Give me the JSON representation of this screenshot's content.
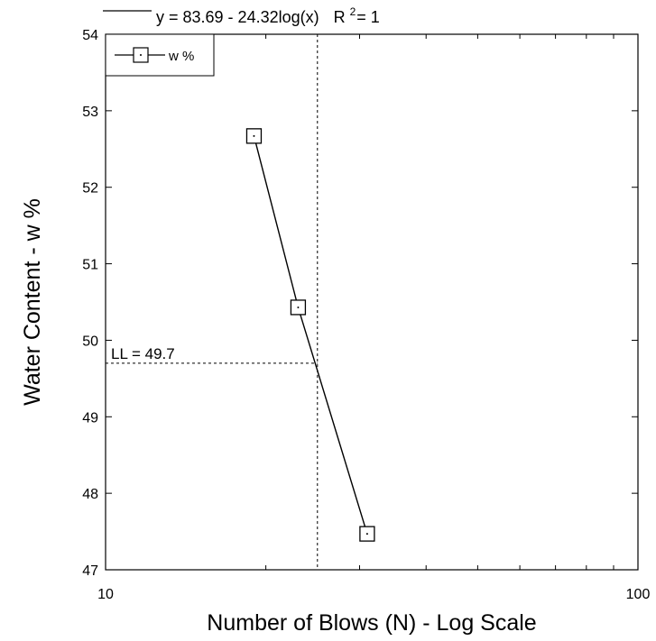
{
  "chart_data": {
    "type": "scatter",
    "x_scale": "log",
    "xlabel": "Number of Blows (N) - Log Scale",
    "ylabel": "Water Content - w %",
    "xlim": [
      10,
      100
    ],
    "ylim": [
      47,
      54
    ],
    "x_ticks": [
      10,
      100
    ],
    "x_tick_labels": [
      "10",
      "100"
    ],
    "y_ticks": [
      47,
      48,
      49,
      50,
      51,
      52,
      53,
      54
    ],
    "y_tick_labels": [
      "47",
      "48",
      "49",
      "50",
      "51",
      "52",
      "53",
      "54"
    ],
    "fit": {
      "equation": "y = 83.69 - 24.32log(x)",
      "r_squared_label": "R",
      "r_squared_sup": "2",
      "r_squared_value": "= 1",
      "intercept": 83.69,
      "slope": -24.32
    },
    "series": [
      {
        "name": "w %",
        "marker": "square-with-dot",
        "color": "#000000",
        "x": [
          19,
          23,
          31
        ],
        "y": [
          52.67,
          50.43,
          47.47
        ]
      }
    ],
    "annotations": {
      "liquid_limit_label": "LL = 49.7",
      "liquid_limit_value": 49.7,
      "reference_x": 25
    },
    "legend": {
      "position": "top-left"
    },
    "grid": false
  }
}
